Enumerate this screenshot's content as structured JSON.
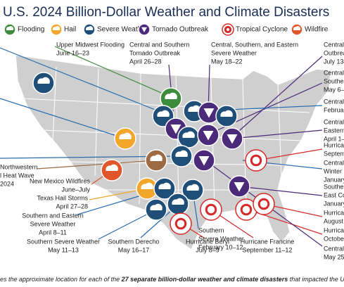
{
  "title": "U.S. 2024 Billion-Dollar Weather and Climate Disasters",
  "legend": [
    "Flooding",
    "Hail",
    "Severe Weather",
    "Tornado Outbreak",
    "Tropical Cyclone",
    "Wildfire"
  ],
  "labels": [
    {
      "lines": [
        "Upper Midwest Flooding",
        "June 16–23"
      ]
    },
    {
      "lines": [
        "Central and Southern",
        "Tornado Outbreak",
        "April 26–28"
      ]
    },
    {
      "lines": [
        "Central, Southern, and Eastern",
        "Severe Weather",
        "May 18–22"
      ]
    },
    {
      "lines": [
        "Central",
        "Outbrea",
        "July 13–"
      ]
    },
    {
      "lines": [
        "Central",
        "Southea",
        "May 6–"
      ]
    },
    {
      "lines": [
        "Central",
        "Februar"
      ]
    },
    {
      "lines": [
        "Central",
        "Eastern",
        "April 1–"
      ]
    },
    {
      "lines": [
        "Hurrican",
        "Septem"
      ]
    },
    {
      "lines": [
        "Central,",
        "Winter S",
        "January"
      ]
    },
    {
      "lines": [
        "Southe",
        "East Co",
        "January"
      ]
    },
    {
      "lines": [
        "Hurrica",
        "August"
      ]
    },
    {
      "lines": [
        "Hurrica",
        "Octobe"
      ]
    },
    {
      "lines": [
        "Central",
        "May 25–"
      ]
    },
    {
      "lines": [
        "Northwestern",
        "l Heat Wave",
        "2024"
      ]
    },
    {
      "lines": [
        "New Mexico Wildfires",
        "June–July"
      ]
    },
    {
      "lines": [
        "Texas Hail Storms",
        "April 27–28"
      ]
    },
    {
      "lines": [
        "Southern and Eastern",
        "Severe Weather",
        "April 8–11"
      ]
    },
    {
      "lines": [
        "Southern Severe Weather",
        "May 11–13"
      ]
    },
    {
      "lines": [
        "Southern Derecho",
        "May 16–17"
      ]
    },
    {
      "lines": [
        "Southern",
        "Severe Weather",
        "February 10–12"
      ]
    },
    {
      "lines": [
        "Hurricane Beryl",
        "July 8–9"
      ]
    },
    {
      "lines": [
        "Hurricane Francine",
        "September 11–12"
      ]
    }
  ],
  "footer": {
    "start": "es the approximate location for each of the ",
    "bold": "27 separate billion-dollar weather and climate disasters",
    "end": " that impacted the United"
  }
}
